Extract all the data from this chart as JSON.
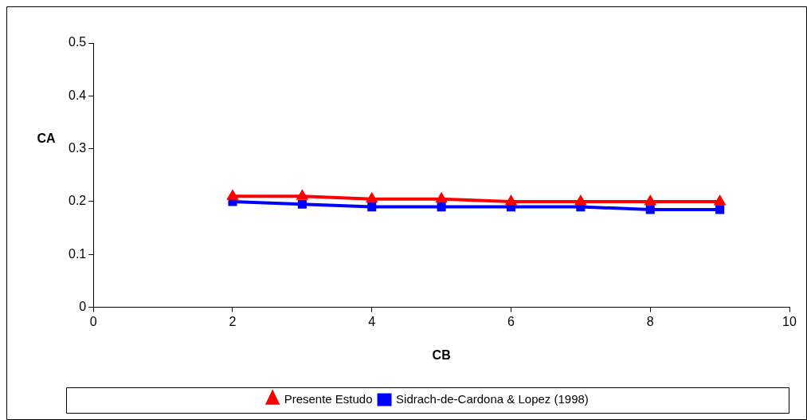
{
  "chart_data": {
    "type": "line",
    "xlabel": "CB",
    "ylabel": "CA",
    "x": [
      2,
      3,
      4,
      5,
      6,
      7,
      8,
      9
    ],
    "series": [
      {
        "name": "Presente Estudo",
        "color": "#ff0000",
        "marker": "triangle",
        "values": [
          0.21,
          0.21,
          0.205,
          0.205,
          0.2,
          0.2,
          0.2,
          0.2
        ]
      },
      {
        "name": "Sidrach-de-Cardona & Lopez (1998)",
        "color": "#0000ff",
        "marker": "square",
        "values": [
          0.2,
          0.195,
          0.19,
          0.19,
          0.19,
          0.19,
          0.185,
          0.185
        ]
      }
    ],
    "xlim": [
      0,
      10
    ],
    "xticks": [
      0,
      2,
      4,
      6,
      8,
      10
    ],
    "ylim": [
      0,
      0.5
    ],
    "yticks": [
      0,
      0.1,
      0.2,
      0.3,
      0.4,
      0.5
    ],
    "grid": false,
    "legend": "bottom"
  }
}
